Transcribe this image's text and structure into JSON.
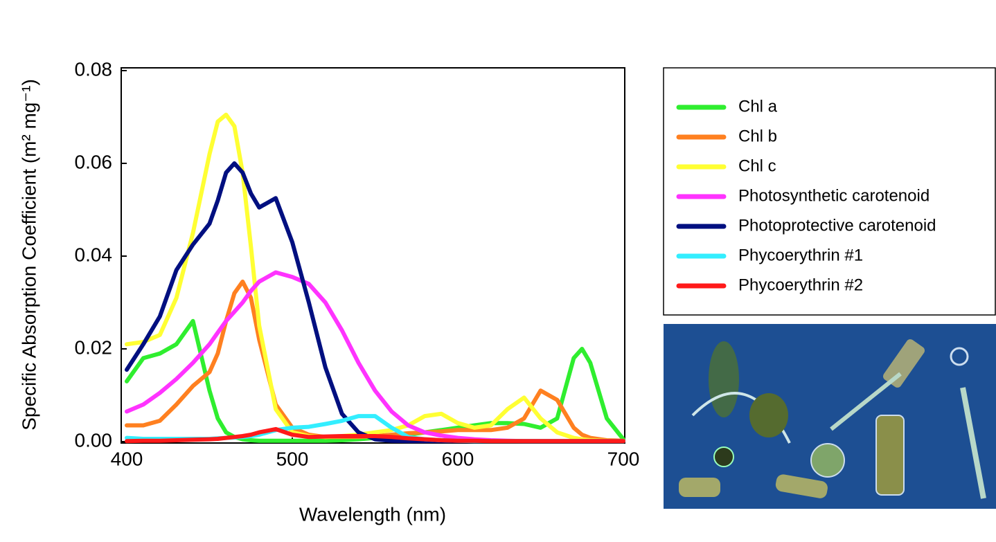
{
  "chart_data": {
    "type": "line",
    "xlabel": "Wavelength (nm)",
    "ylabel": "Specific Absorption Coefficient (m² mg⁻¹)",
    "x": [
      400,
      410,
      420,
      430,
      440,
      450,
      455,
      460,
      465,
      470,
      475,
      480,
      490,
      500,
      510,
      520,
      530,
      540,
      550,
      560,
      570,
      580,
      590,
      600,
      610,
      620,
      630,
      640,
      650,
      660,
      670,
      675,
      680,
      690,
      700
    ],
    "xlim": [
      400,
      700
    ],
    "xticks": [
      400,
      500,
      600,
      700
    ],
    "ylim": [
      0,
      0.08
    ],
    "yticks": [
      {
        "value": 0,
        "label": "0.00"
      },
      {
        "value": 0.02,
        "label": "0.02"
      },
      {
        "value": 0.04,
        "label": "0.04"
      },
      {
        "value": 0.06,
        "label": "0.06"
      },
      {
        "value": 0.08,
        "label": "0.08"
      }
    ],
    "grid": false,
    "series": [
      {
        "name": "Chl a",
        "color": "#2fee2f",
        "values": [
          0.013,
          0.018,
          0.019,
          0.021,
          0.026,
          0.011,
          0.005,
          0.002,
          0.001,
          0.0005,
          0.0003,
          0.0002,
          0.0002,
          0.0002,
          0.0002,
          0.0002,
          0.0003,
          0.0005,
          0.0008,
          0.001,
          0.0015,
          0.002,
          0.0025,
          0.003,
          0.0035,
          0.004,
          0.004,
          0.0038,
          0.003,
          0.005,
          0.018,
          0.02,
          0.017,
          0.005,
          0.0005
        ]
      },
      {
        "name": "Chl b",
        "color": "#ff8020",
        "values": [
          0.0035,
          0.0035,
          0.0045,
          0.008,
          0.012,
          0.015,
          0.019,
          0.026,
          0.032,
          0.0345,
          0.031,
          0.022,
          0.008,
          0.003,
          0.0015,
          0.001,
          0.001,
          0.001,
          0.0012,
          0.0015,
          0.0018,
          0.002,
          0.0022,
          0.0025,
          0.0025,
          0.0025,
          0.003,
          0.005,
          0.011,
          0.009,
          0.003,
          0.0015,
          0.0008,
          0.0003,
          0.0002
        ]
      },
      {
        "name": "Chl c",
        "color": "#ffff33",
        "values": [
          0.021,
          0.0215,
          0.023,
          0.031,
          0.045,
          0.062,
          0.069,
          0.0705,
          0.068,
          0.058,
          0.042,
          0.025,
          0.007,
          0.002,
          0.0012,
          0.001,
          0.0012,
          0.0015,
          0.002,
          0.0025,
          0.0035,
          0.0055,
          0.006,
          0.004,
          0.003,
          0.0035,
          0.007,
          0.0095,
          0.005,
          0.002,
          0.0008,
          0.0005,
          0.0003,
          0.0002,
          0.0001
        ]
      },
      {
        "name": "Photosynthetic carotenoid",
        "color": "#ff33ff",
        "values": [
          0.0065,
          0.008,
          0.0105,
          0.0135,
          0.017,
          0.021,
          0.0235,
          0.026,
          0.028,
          0.03,
          0.0325,
          0.0345,
          0.0365,
          0.0355,
          0.034,
          0.03,
          0.024,
          0.017,
          0.011,
          0.0065,
          0.0035,
          0.002,
          0.0013,
          0.0008,
          0.0005,
          0.0003,
          0.0002,
          0.0001,
          0.0001,
          0.0001,
          0.0001,
          0.0001,
          0.0001,
          0.0001,
          0.0001
        ]
      },
      {
        "name": "Photoprotective carotenoid",
        "color": "#000f80",
        "values": [
          0.0155,
          0.021,
          0.027,
          0.037,
          0.0425,
          0.047,
          0.052,
          0.058,
          0.06,
          0.058,
          0.0535,
          0.0505,
          0.0525,
          0.043,
          0.03,
          0.016,
          0.006,
          0.002,
          0.0005,
          0.0002,
          0.0001,
          0.0001,
          0.0001,
          0.0001,
          0.0001,
          0.0001,
          0.0001,
          0.0001,
          0.0001,
          0.0001,
          0.0001,
          0.0001,
          0.0001,
          0.0001,
          0.0001
        ]
      },
      {
        "name": "Phycoerythrin #1",
        "color": "#33eeff",
        "values": [
          0.0008,
          0.0006,
          0.0006,
          0.0006,
          0.0006,
          0.0006,
          0.0007,
          0.0008,
          0.0009,
          0.001,
          0.0012,
          0.0015,
          0.0025,
          0.003,
          0.0032,
          0.0038,
          0.0045,
          0.0055,
          0.0055,
          0.003,
          0.001,
          0.0005,
          0.0003,
          0.0002,
          0.0001,
          0.0001,
          0.0001,
          0.0001,
          0.0001,
          0.0001,
          0.0001,
          0.0001,
          0.0001,
          0.0001,
          0.0001
        ]
      },
      {
        "name": "Phycoerythrin #2",
        "color": "#ff1a1a",
        "values": [
          0.0001,
          0.0002,
          0.0002,
          0.0003,
          0.0004,
          0.0005,
          0.0006,
          0.0008,
          0.001,
          0.0012,
          0.0015,
          0.002,
          0.0027,
          0.0015,
          0.001,
          0.0011,
          0.0012,
          0.0012,
          0.0012,
          0.001,
          0.0007,
          0.0005,
          0.0003,
          0.0002,
          0.0002,
          0.0001,
          0.0001,
          0.0001,
          0.0001,
          0.0001,
          0.0001,
          0.0001,
          0.0001,
          0.0001,
          0.0001
        ]
      }
    ]
  }
}
